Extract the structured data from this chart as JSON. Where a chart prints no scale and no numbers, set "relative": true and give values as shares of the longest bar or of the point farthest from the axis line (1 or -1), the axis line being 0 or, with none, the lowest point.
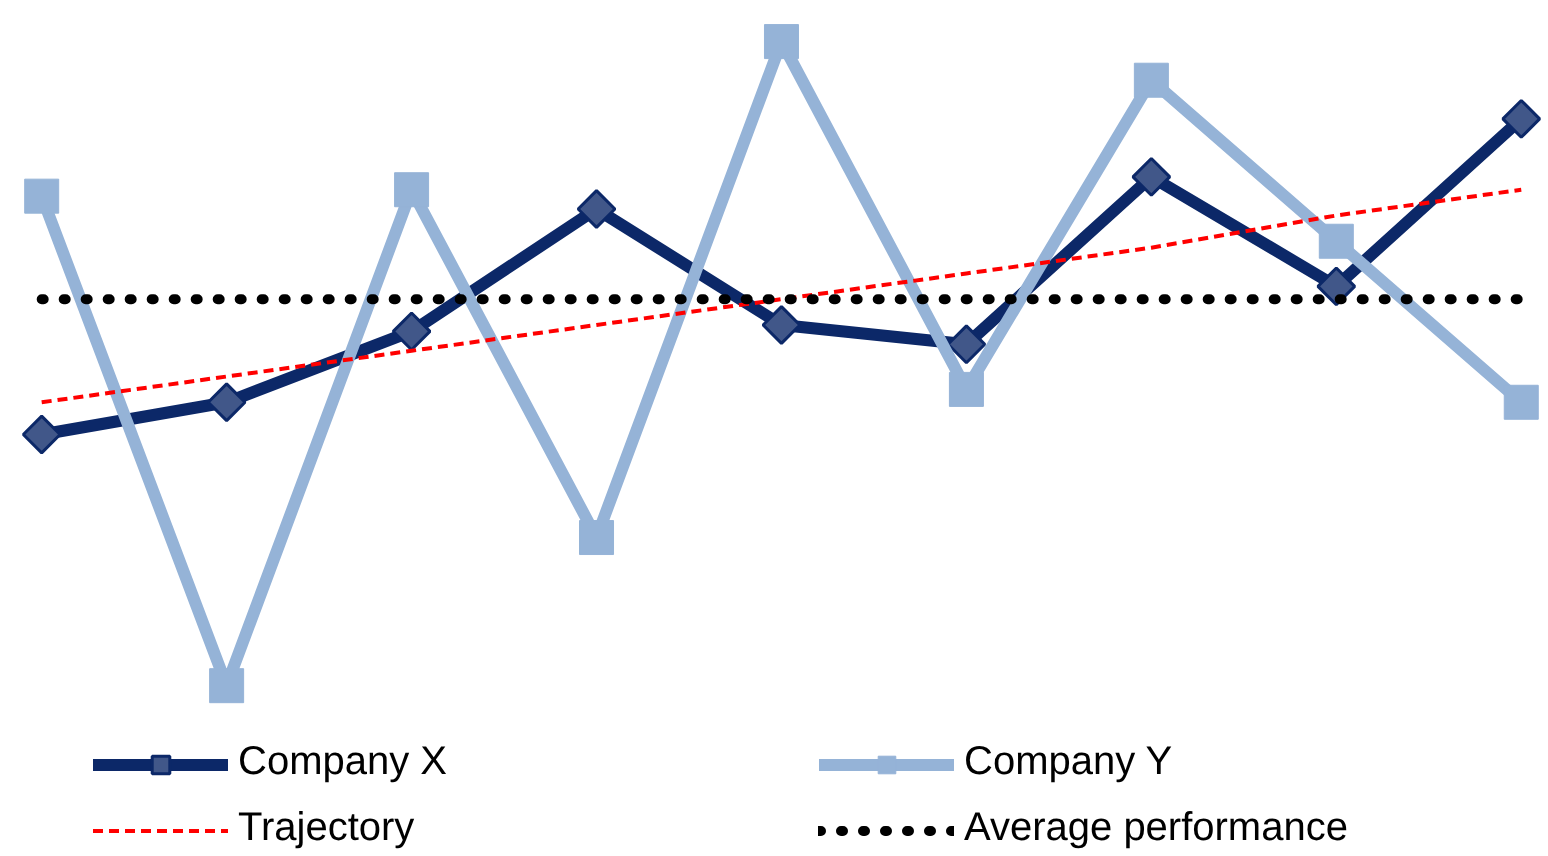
{
  "chart_data": {
    "type": "line",
    "relative": true,
    "categories": [
      null,
      null,
      null,
      null,
      null,
      null,
      null,
      null,
      null
    ],
    "series": [
      {
        "name": "Company X",
        "color": "#0c2868",
        "marker": "diamond",
        "values": [
          0.39,
          0.44,
          0.55,
          0.74,
          0.56,
          0.53,
          0.79,
          0.62,
          0.88
        ]
      },
      {
        "name": "Company Y",
        "color": "#95b3d7",
        "marker": "square",
        "values": [
          0.76,
          0,
          0.77,
          0.23,
          1,
          0.46,
          0.94,
          0.69,
          0.44
        ]
      },
      {
        "name": "Trajectory",
        "color": "#ff0000",
        "marker": "none",
        "line_style": "dashed",
        "values": [
          0.44,
          0.48,
          0.52,
          0.56,
          0.6,
          0.64,
          0.68,
          0.73,
          0.77
        ]
      }
    ],
    "ref_lines": [
      {
        "axis": "y",
        "value": 0.6,
        "label": "Average performance",
        "color": "#000000",
        "line_style": "dotted"
      }
    ],
    "legend": "bottom",
    "grid": false
  }
}
